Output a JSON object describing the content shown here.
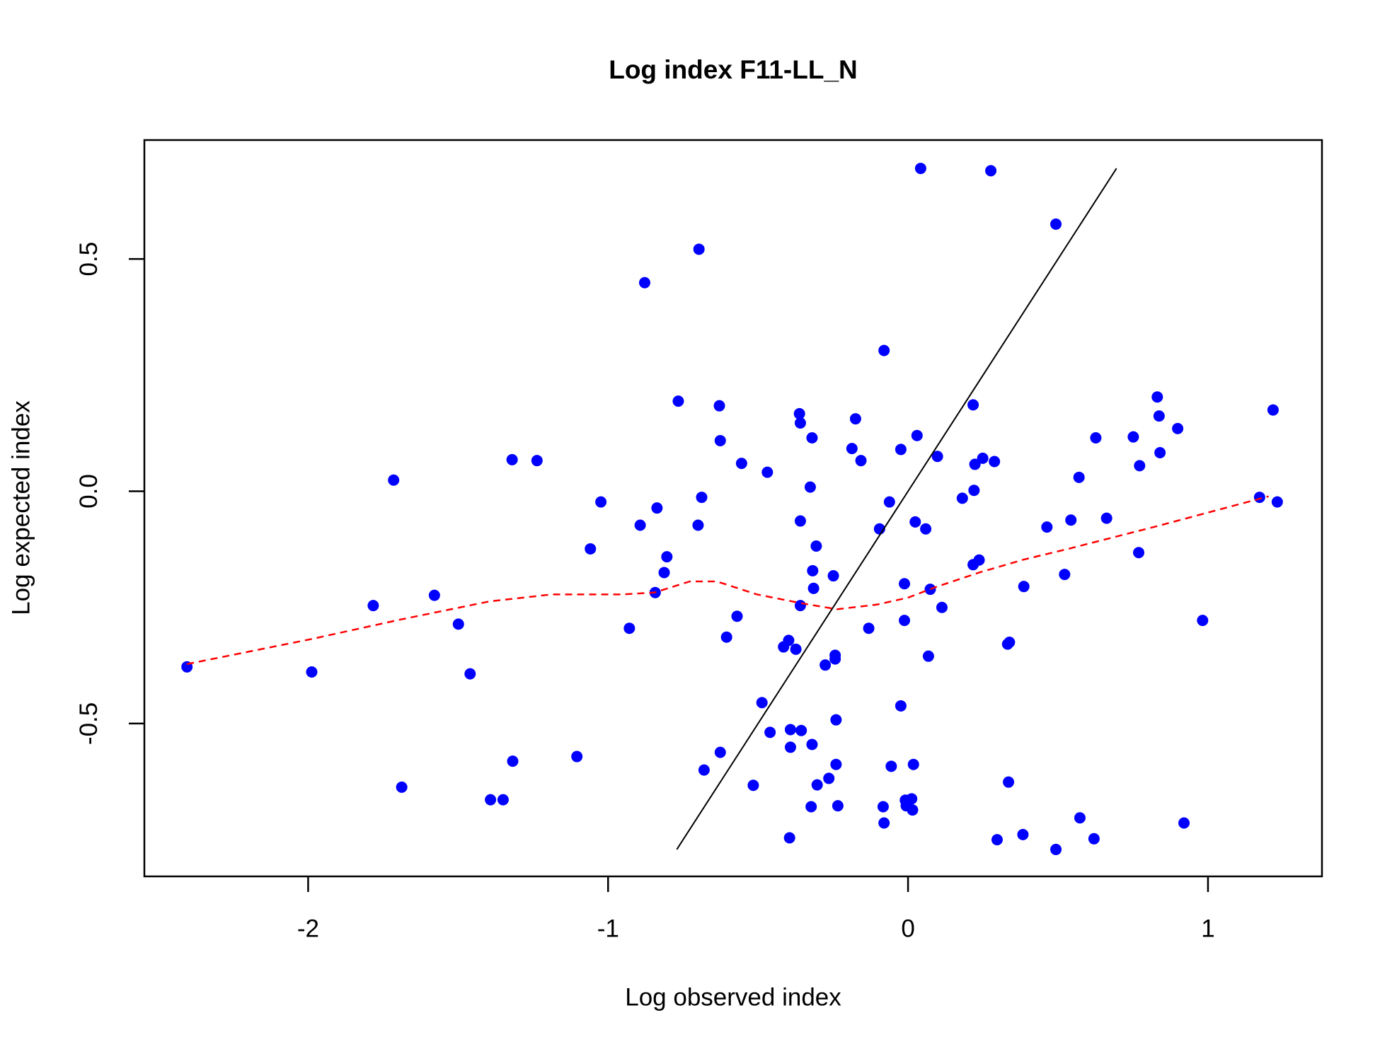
{
  "chart_data": {
    "type": "scatter",
    "title": "Log index F11-LL_N",
    "x_label": "Log observed index",
    "y_label": "Log expected index",
    "xlim": [
      -2.546,
      1.38
    ],
    "ylim": [
      -0.829,
      0.756
    ],
    "xticks": [
      -2,
      -1,
      0,
      1
    ],
    "yticks": [
      -0.5,
      {
        "value": 0,
        "label": "0.0"
      },
      0.5
    ],
    "x": [
      -2.404,
      -1.988,
      -1.783,
      -1.715,
      -1.688,
      -1.579,
      -1.499,
      -1.46,
      -1.392,
      -1.35,
      -1.32,
      -1.318,
      -1.237,
      -1.104,
      -1.059,
      -1.024,
      -0.929,
      -0.893,
      -0.878,
      -0.843,
      -0.837,
      -0.813,
      -0.804,
      -0.766,
      -0.697,
      -0.7,
      -0.688,
      -0.68,
      -0.629,
      -0.626,
      -0.626,
      -0.605,
      -0.57,
      -0.555,
      -0.516,
      -0.487,
      -0.469,
      -0.46,
      -0.415,
      -0.398,
      -0.392,
      -0.392,
      -0.395,
      -0.374,
      -0.362,
      -0.359,
      -0.359,
      -0.359,
      -0.356,
      -0.326,
      -0.323,
      -0.32,
      -0.32,
      -0.318,
      -0.315,
      -0.306,
      -0.303,
      -0.276,
      -0.264,
      -0.249,
      -0.243,
      -0.243,
      -0.24,
      -0.24,
      -0.234,
      -0.187,
      -0.175,
      -0.157,
      -0.131,
      -0.095,
      -0.08,
      -0.083,
      -0.08,
      -0.062,
      -0.056,
      -0.024,
      -0.024,
      -0.012,
      -0.012,
      -0.009,
      -0.006,
      0.012,
      0.015,
      0.018,
      0.024,
      0.03,
      0.042,
      0.059,
      0.068,
      0.074,
      0.098,
      0.113,
      0.181,
      0.217,
      0.217,
      0.22,
      0.223,
      0.237,
      0.249,
      0.276,
      0.288,
      0.297,
      0.332,
      0.338,
      0.335,
      0.383,
      0.386,
      0.463,
      0.493,
      0.493,
      0.522,
      0.543,
      0.57,
      0.573,
      0.62,
      0.626,
      0.662,
      0.751,
      0.769,
      0.772,
      0.831,
      0.837,
      0.84,
      0.899,
      0.92,
      0.982,
      1.172,
      1.217,
      1.231
    ],
    "series": [
      {
        "color": "#0000ff",
        "values": [
          -0.378,
          -0.389,
          -0.246,
          0.024,
          -0.637,
          -0.224,
          -0.286,
          -0.393,
          -0.664,
          -0.664,
          0.068,
          -0.581,
          0.066,
          -0.571,
          -0.124,
          -0.023,
          -0.295,
          -0.073,
          0.449,
          -0.218,
          -0.036,
          -0.175,
          -0.141,
          0.194,
          0.521,
          -0.073,
          -0.013,
          -0.6,
          0.184,
          0.109,
          -0.562,
          -0.314,
          -0.269,
          0.06,
          -0.633,
          -0.455,
          0.041,
          -0.519,
          -0.335,
          -0.321,
          -0.513,
          -0.551,
          -0.746,
          -0.34,
          0.167,
          0.147,
          -0.064,
          -0.246,
          -0.515,
          0.009,
          -0.679,
          0.115,
          -0.545,
          -0.171,
          -0.209,
          -0.118,
          -0.632,
          -0.374,
          -0.618,
          -0.182,
          -0.353,
          -0.361,
          -0.492,
          -0.588,
          -0.677,
          0.092,
          0.156,
          0.066,
          -0.295,
          -0.081,
          0.303,
          -0.679,
          -0.714,
          -0.023,
          -0.592,
          0.09,
          -0.462,
          -0.199,
          -0.278,
          -0.665,
          -0.677,
          -0.662,
          -0.686,
          -0.588,
          -0.066,
          0.12,
          0.695,
          -0.081,
          -0.355,
          -0.211,
          0.075,
          -0.25,
          -0.015,
          0.186,
          -0.158,
          0.002,
          0.058,
          -0.148,
          0.071,
          0.69,
          0.064,
          -0.75,
          -0.329,
          -0.325,
          -0.626,
          -0.739,
          -0.205,
          -0.077,
          0.575,
          -0.771,
          -0.179,
          -0.062,
          0.03,
          -0.703,
          -0.748,
          0.115,
          -0.058,
          0.117,
          -0.132,
          0.055,
          0.203,
          0.162,
          0.083,
          0.135,
          -0.714,
          -0.278,
          -0.013,
          0.175,
          -0.023
        ]
      }
    ],
    "smooth": {
      "color": "#ff0000",
      "x": [
        -2.404,
        -1.988,
        -1.691,
        -1.395,
        -1.187,
        -0.95,
        -0.846,
        -0.727,
        -0.638,
        -0.504,
        -0.356,
        -0.237,
        -0.104,
        0,
        0.089,
        0.237,
        0.386,
        0.534,
        0.831,
        1.202
      ],
      "y": [
        -0.372,
        -0.318,
        -0.276,
        -0.237,
        -0.222,
        -0.222,
        -0.218,
        -0.194,
        -0.194,
        -0.222,
        -0.241,
        -0.254,
        -0.244,
        -0.229,
        -0.207,
        -0.175,
        -0.147,
        -0.124,
        -0.075,
        -0.011
      ]
    },
    "identity_line": true
  }
}
